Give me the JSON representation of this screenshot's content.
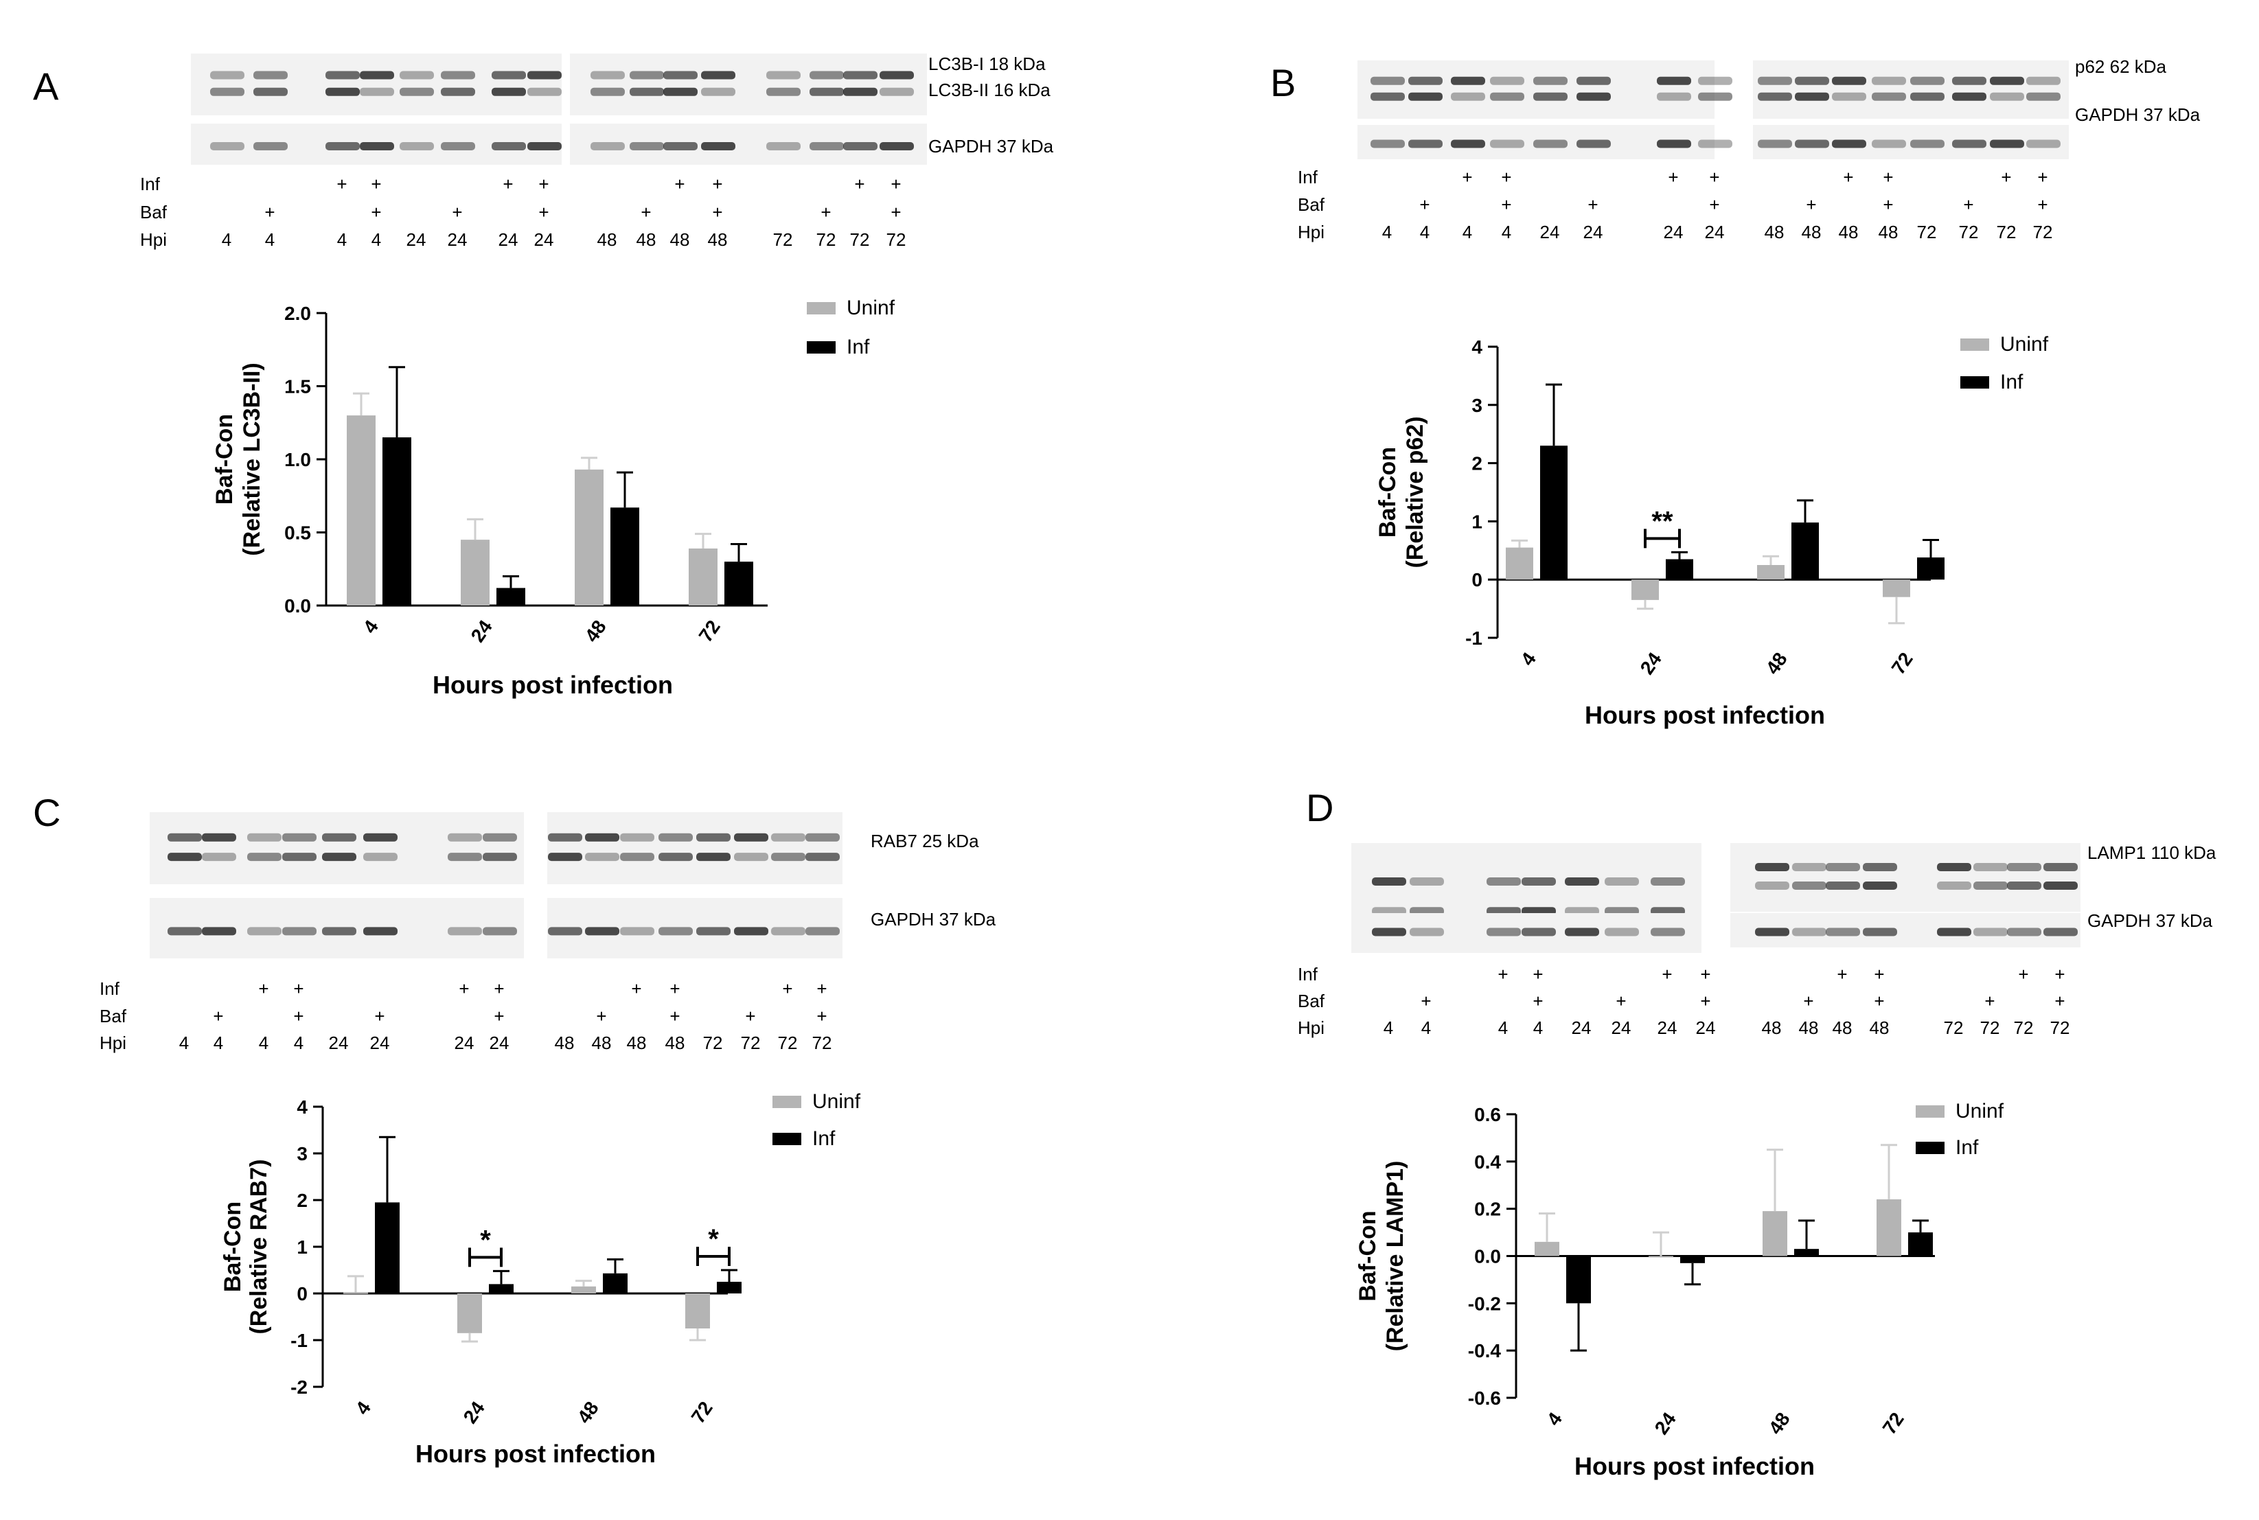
{
  "colors": {
    "uninf": "#b4b4b4",
    "inf": "#000000",
    "blot_bg": "#f2f2f2",
    "band": "#1e1e1e"
  },
  "sample_rows": [
    "Inf",
    "Baf",
    "Hpi"
  ],
  "panels": [
    {
      "letter": "A",
      "blot_labels": {
        "top": [
          "LC3B-I 18 kDa",
          "LC3B-II 16 kDa"
        ],
        "bottom": [
          "GAPDH 37 kDa"
        ]
      },
      "lanes": [
        {
          "inf": false,
          "baf": false,
          "hpi": "4"
        },
        {
          "inf": false,
          "baf": true,
          "hpi": "4"
        },
        {
          "inf": true,
          "baf": false,
          "hpi": "4"
        },
        {
          "inf": true,
          "baf": true,
          "hpi": "4"
        },
        {
          "inf": false,
          "baf": false,
          "hpi": "24"
        },
        {
          "inf": false,
          "baf": true,
          "hpi": "24"
        },
        {
          "inf": true,
          "baf": false,
          "hpi": "24"
        },
        {
          "inf": true,
          "baf": true,
          "hpi": "24"
        },
        {
          "inf": false,
          "baf": false,
          "hpi": "48"
        },
        {
          "inf": false,
          "baf": true,
          "hpi": "48"
        },
        {
          "inf": true,
          "baf": false,
          "hpi": "48"
        },
        {
          "inf": true,
          "baf": true,
          "hpi": "48"
        },
        {
          "inf": false,
          "baf": false,
          "hpi": "72"
        },
        {
          "inf": false,
          "baf": true,
          "hpi": "72"
        },
        {
          "inf": true,
          "baf": false,
          "hpi": "72"
        },
        {
          "inf": true,
          "baf": true,
          "hpi": "72"
        }
      ],
      "chart_data": {
        "type": "bar",
        "categories": [
          "4",
          "24",
          "48",
          "72"
        ],
        "series": [
          {
            "name": "Uninf",
            "values": [
              1.3,
              0.45,
              0.93,
              0.39
            ],
            "errors": [
              0.15,
              0.14,
              0.08,
              0.1
            ]
          },
          {
            "name": "Inf",
            "values": [
              1.15,
              0.12,
              0.67,
              0.3
            ],
            "errors": [
              0.48,
              0.08,
              0.24,
              0.12
            ]
          }
        ],
        "ylabel": [
          "Baf-Con",
          "(Relative LC3B-II)"
        ],
        "xlabel": "Hours post infection",
        "ylim": [
          0,
          2.0
        ],
        "yticks": [
          0.0,
          0.5,
          1.0,
          1.5,
          2.0
        ],
        "ytick_labels": [
          "0.0",
          "0.5",
          "1.0",
          "1.5",
          "2.0"
        ],
        "significance": [],
        "legend_position": "top-right"
      }
    },
    {
      "letter": "B",
      "blot_labels": {
        "top": [
          "p62 62 kDa"
        ],
        "bottom": [
          "GAPDH 37 kDa"
        ]
      },
      "lanes": [
        {
          "inf": false,
          "baf": false,
          "hpi": "4"
        },
        {
          "inf": false,
          "baf": true,
          "hpi": "4"
        },
        {
          "inf": true,
          "baf": false,
          "hpi": "4"
        },
        {
          "inf": true,
          "baf": true,
          "hpi": "4"
        },
        {
          "inf": false,
          "baf": false,
          "hpi": "24"
        },
        {
          "inf": false,
          "baf": true,
          "hpi": "24"
        },
        {
          "inf": true,
          "baf": false,
          "hpi": "24"
        },
        {
          "inf": true,
          "baf": true,
          "hpi": "24"
        },
        {
          "inf": false,
          "baf": false,
          "hpi": "48"
        },
        {
          "inf": false,
          "baf": true,
          "hpi": "48"
        },
        {
          "inf": true,
          "baf": false,
          "hpi": "48"
        },
        {
          "inf": true,
          "baf": true,
          "hpi": "48"
        },
        {
          "inf": false,
          "baf": false,
          "hpi": "72"
        },
        {
          "inf": false,
          "baf": true,
          "hpi": "72"
        },
        {
          "inf": true,
          "baf": false,
          "hpi": "72"
        },
        {
          "inf": true,
          "baf": true,
          "hpi": "72"
        }
      ],
      "chart_data": {
        "type": "bar",
        "categories": [
          "4",
          "24",
          "48",
          "72"
        ],
        "series": [
          {
            "name": "Uninf",
            "values": [
              0.55,
              -0.35,
              0.25,
              -0.3
            ],
            "errors": [
              0.12,
              0.15,
              0.15,
              0.45
            ]
          },
          {
            "name": "Inf",
            "values": [
              2.3,
              0.35,
              0.98,
              0.38
            ],
            "errors": [
              1.05,
              0.12,
              0.38,
              0.3
            ]
          }
        ],
        "ylabel": [
          "Baf-Con",
          "(Relative p62)"
        ],
        "xlabel": "Hours post infection",
        "ylim": [
          -1,
          4
        ],
        "yticks": [
          -1,
          0,
          1,
          2,
          3,
          4
        ],
        "ytick_labels": [
          "-1",
          "0",
          "1",
          "2",
          "3",
          "4"
        ],
        "significance": [
          {
            "category": "24",
            "label": "**"
          }
        ],
        "legend_position": "top-right"
      }
    },
    {
      "letter": "C",
      "blot_labels": {
        "top": [
          "RAB7 25 kDa"
        ],
        "bottom": [
          "GAPDH 37 kDa"
        ]
      },
      "lanes": [
        {
          "inf": false,
          "baf": false,
          "hpi": "4"
        },
        {
          "inf": false,
          "baf": true,
          "hpi": "4"
        },
        {
          "inf": true,
          "baf": false,
          "hpi": "4"
        },
        {
          "inf": true,
          "baf": true,
          "hpi": "4"
        },
        {
          "inf": false,
          "baf": false,
          "hpi": "24"
        },
        {
          "inf": false,
          "baf": true,
          "hpi": "24"
        },
        {
          "inf": true,
          "baf": false,
          "hpi": "24"
        },
        {
          "inf": true,
          "baf": true,
          "hpi": "24"
        },
        {
          "inf": false,
          "baf": false,
          "hpi": "48"
        },
        {
          "inf": false,
          "baf": true,
          "hpi": "48"
        },
        {
          "inf": true,
          "baf": false,
          "hpi": "48"
        },
        {
          "inf": true,
          "baf": true,
          "hpi": "48"
        },
        {
          "inf": false,
          "baf": false,
          "hpi": "72"
        },
        {
          "inf": false,
          "baf": true,
          "hpi": "72"
        },
        {
          "inf": true,
          "baf": false,
          "hpi": "72"
        },
        {
          "inf": true,
          "baf": true,
          "hpi": "72"
        }
      ],
      "chart_data": {
        "type": "bar",
        "categories": [
          "4",
          "24",
          "48",
          "72"
        ],
        "series": [
          {
            "name": "Uninf",
            "values": [
              0.02,
              -0.85,
              0.15,
              -0.75
            ],
            "errors": [
              0.35,
              0.18,
              0.12,
              0.25
            ]
          },
          {
            "name": "Inf",
            "values": [
              1.95,
              0.2,
              0.43,
              0.25
            ],
            "errors": [
              1.4,
              0.28,
              0.3,
              0.25
            ]
          }
        ],
        "ylabel": [
          "Baf-Con",
          "(Relative RAB7)"
        ],
        "xlabel": "Hours post infection",
        "ylim": [
          -2,
          4
        ],
        "yticks": [
          -2,
          -1,
          0,
          1,
          2,
          3,
          4
        ],
        "ytick_labels": [
          "-2",
          "-1",
          "0",
          "1",
          "2",
          "3",
          "4"
        ],
        "significance": [
          {
            "category": "24",
            "label": "*"
          },
          {
            "category": "72",
            "label": "*"
          }
        ],
        "legend_position": "top-right"
      }
    },
    {
      "letter": "D",
      "blot_labels": {
        "top": [
          "LAMP1 110 kDa"
        ],
        "bottom": [
          "GAPDH 37 kDa"
        ]
      },
      "lanes": [
        {
          "inf": false,
          "baf": false,
          "hpi": "4"
        },
        {
          "inf": false,
          "baf": true,
          "hpi": "4"
        },
        {
          "inf": true,
          "baf": false,
          "hpi": "4"
        },
        {
          "inf": true,
          "baf": true,
          "hpi": "4"
        },
        {
          "inf": false,
          "baf": false,
          "hpi": "24"
        },
        {
          "inf": false,
          "baf": true,
          "hpi": "24"
        },
        {
          "inf": true,
          "baf": false,
          "hpi": "24"
        },
        {
          "inf": true,
          "baf": true,
          "hpi": "24"
        },
        {
          "inf": false,
          "baf": false,
          "hpi": "48"
        },
        {
          "inf": false,
          "baf": true,
          "hpi": "48"
        },
        {
          "inf": true,
          "baf": false,
          "hpi": "48"
        },
        {
          "inf": true,
          "baf": true,
          "hpi": "48"
        },
        {
          "inf": false,
          "baf": false,
          "hpi": "72"
        },
        {
          "inf": false,
          "baf": true,
          "hpi": "72"
        },
        {
          "inf": true,
          "baf": false,
          "hpi": "72"
        },
        {
          "inf": true,
          "baf": true,
          "hpi": "72"
        }
      ],
      "chart_data": {
        "type": "bar",
        "categories": [
          "4",
          "24",
          "48",
          "72"
        ],
        "series": [
          {
            "name": "Uninf",
            "values": [
              0.06,
              0.0,
              0.19,
              0.24
            ],
            "errors": [
              0.12,
              0.1,
              0.26,
              0.23
            ]
          },
          {
            "name": "Inf",
            "values": [
              -0.2,
              -0.03,
              0.03,
              0.1
            ],
            "errors": [
              0.2,
              0.09,
              0.12,
              0.05
            ]
          }
        ],
        "ylabel": [
          "Baf-Con",
          "(Relative LAMP1)"
        ],
        "xlabel": "Hours post infection",
        "ylim": [
          -0.6,
          0.6
        ],
        "yticks": [
          -0.6,
          -0.4,
          -0.2,
          0.0,
          0.2,
          0.4,
          0.6
        ],
        "ytick_labels": [
          "-0.6",
          "-0.4",
          "-0.2",
          "0.0",
          "0.2",
          "0.4",
          "0.6"
        ],
        "significance": [],
        "legend_position": "top-right"
      }
    }
  ]
}
